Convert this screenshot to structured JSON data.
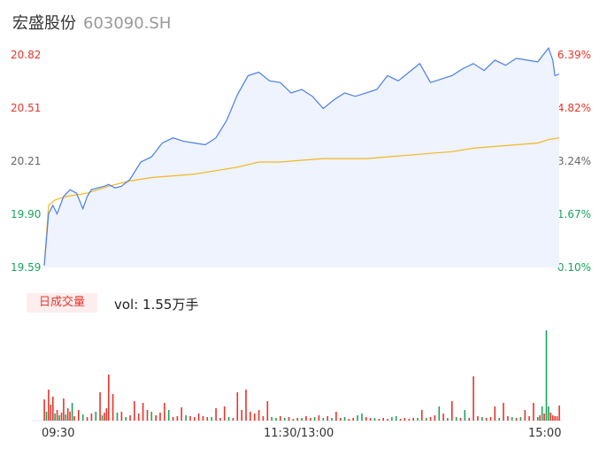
{
  "header": {
    "name": "宏盛股份",
    "code": "603090.SH"
  },
  "volume_panel": {
    "tag": "日成交量",
    "value_text": "vol: 1.55万手"
  },
  "colors": {
    "price": "#4a7fe6",
    "avg": "#f2b81f",
    "up": "#e8342c",
    "down": "#1aa55a",
    "fill": "#eef3fd"
  },
  "chart_data": {
    "type": "line",
    "y_left_ticks": [
      "20.82",
      "20.51",
      "20.21",
      "19.90",
      "19.59"
    ],
    "y_right_ticks": [
      "6.39%",
      "4.82%",
      "3.24%",
      "1.67%",
      "0.10%"
    ],
    "ylim": [
      19.59,
      20.82
    ],
    "x_ticks": [
      "09:30",
      "11:30/13:00",
      "15:00"
    ],
    "series": [
      {
        "key": "price",
        "x": [
          0,
          2,
          4,
          6,
          9,
          12,
          15,
          18,
          20,
          22,
          25,
          28,
          30,
          33,
          36,
          40,
          45,
          50,
          55,
          60,
          65,
          70,
          75,
          80,
          85,
          90,
          95,
          100,
          105,
          110,
          115,
          120,
          125,
          130,
          135,
          140,
          145,
          150,
          155,
          160,
          165,
          170,
          175,
          180,
          185,
          190,
          195,
          200,
          205,
          210,
          215,
          220,
          225,
          230,
          235,
          237,
          238,
          240
        ],
        "values": [
          19.6,
          19.9,
          19.95,
          19.9,
          20.0,
          20.04,
          20.02,
          19.93,
          20.0,
          20.04,
          20.05,
          20.06,
          20.07,
          20.05,
          20.06,
          20.1,
          20.2,
          20.23,
          20.31,
          20.34,
          20.32,
          20.31,
          20.3,
          20.34,
          20.44,
          20.59,
          20.7,
          20.72,
          20.67,
          20.66,
          20.6,
          20.62,
          20.58,
          20.51,
          20.56,
          20.6,
          20.58,
          20.6,
          20.62,
          20.7,
          20.67,
          20.72,
          20.77,
          20.66,
          20.68,
          20.7,
          20.74,
          20.77,
          20.73,
          20.79,
          20.76,
          20.8,
          20.79,
          20.78,
          20.86,
          20.79,
          20.7,
          20.71
        ]
      },
      {
        "key": "avg",
        "x": [
          0,
          2,
          5,
          10,
          20,
          30,
          40,
          50,
          60,
          70,
          80,
          90,
          100,
          110,
          120,
          130,
          140,
          150,
          160,
          170,
          180,
          190,
          200,
          210,
          220,
          230,
          235,
          240
        ],
        "values": [
          19.6,
          19.95,
          19.98,
          20.0,
          20.02,
          20.06,
          20.09,
          20.11,
          20.12,
          20.13,
          20.15,
          20.17,
          20.2,
          20.2,
          20.21,
          20.22,
          20.22,
          20.22,
          20.23,
          20.24,
          20.25,
          20.26,
          20.28,
          20.29,
          20.3,
          20.31,
          20.33,
          20.34
        ]
      }
    ],
    "volume": {
      "x": [
        0,
        1,
        2,
        3,
        4,
        5,
        6,
        7,
        8,
        9,
        10,
        11,
        12,
        13,
        14,
        16,
        18,
        20,
        22,
        24,
        26,
        27,
        28,
        29,
        30,
        32,
        34,
        36,
        38,
        40,
        42,
        44,
        46,
        48,
        50,
        52,
        54,
        56,
        58,
        60,
        62,
        64,
        66,
        68,
        70,
        72,
        74,
        76,
        78,
        80,
        82,
        84,
        86,
        88,
        90,
        92,
        94,
        96,
        98,
        100,
        102,
        104,
        106,
        108,
        110,
        112,
        114,
        116,
        118,
        120,
        122,
        124,
        126,
        128,
        130,
        132,
        134,
        136,
        138,
        140,
        142,
        144,
        146,
        148,
        150,
        152,
        154,
        156,
        158,
        160,
        162,
        164,
        166,
        168,
        170,
        172,
        174,
        176,
        178,
        180,
        182,
        184,
        186,
        188,
        190,
        192,
        194,
        196,
        198,
        200,
        202,
        204,
        206,
        208,
        210,
        212,
        214,
        216,
        218,
        220,
        222,
        224,
        226,
        228,
        230,
        231,
        232,
        233,
        234,
        235,
        236,
        237,
        238,
        239,
        240
      ],
      "values": [
        24,
        10,
        35,
        18,
        27,
        8,
        12,
        6,
        9,
        25,
        7,
        14,
        10,
        20,
        5,
        12,
        7,
        4,
        8,
        10,
        32,
        6,
        9,
        14,
        52,
        30,
        9,
        10,
        4,
        6,
        22,
        8,
        20,
        12,
        10,
        6,
        9,
        20,
        12,
        4,
        5,
        15,
        6,
        5,
        4,
        8,
        5,
        4,
        4,
        14,
        3,
        16,
        4,
        3,
        32,
        12,
        35,
        10,
        8,
        12,
        5,
        22,
        4,
        3,
        5,
        3,
        4,
        2,
        3,
        3,
        5,
        3,
        4,
        6,
        3,
        5,
        3,
        10,
        3,
        4,
        2,
        3,
        6,
        8,
        4,
        3,
        3,
        2,
        3,
        2,
        4,
        5,
        2,
        3,
        2,
        3,
        3,
        12,
        3,
        4,
        6,
        16,
        8,
        3,
        22,
        4,
        3,
        12,
        3,
        50,
        5,
        4,
        3,
        4,
        16,
        3,
        20,
        5,
        4,
        3,
        4,
        12,
        5,
        20,
        4,
        6,
        16,
        8,
        102,
        16,
        9,
        6,
        5,
        5,
        17
      ],
      "up": [
        1,
        0,
        1,
        1,
        1,
        0,
        1,
        0,
        1,
        1,
        0,
        1,
        1,
        0,
        1,
        1,
        0,
        1,
        1,
        0,
        1,
        0,
        1,
        1,
        1,
        1,
        0,
        1,
        0,
        1,
        1,
        1,
        1,
        1,
        0,
        1,
        1,
        1,
        0,
        1,
        1,
        1,
        0,
        1,
        1,
        1,
        1,
        1,
        0,
        1,
        1,
        1,
        0,
        1,
        1,
        1,
        1,
        1,
        1,
        1,
        1,
        1,
        0,
        0,
        1,
        0,
        1,
        0,
        1,
        0,
        1,
        1,
        0,
        1,
        0,
        1,
        0,
        1,
        1,
        0,
        1,
        1,
        0,
        0,
        1,
        1,
        0,
        1,
        1,
        1,
        0,
        0,
        1,
        1,
        1,
        1,
        0,
        1,
        0,
        1,
        1,
        0,
        1,
        0,
        1,
        0,
        1,
        0,
        1,
        1,
        1,
        0,
        1,
        1,
        1,
        0,
        1,
        1,
        0,
        1,
        0,
        1,
        1,
        1,
        0,
        1,
        0,
        1,
        0,
        0,
        1,
        1,
        1,
        1,
        1
      ]
    }
  }
}
